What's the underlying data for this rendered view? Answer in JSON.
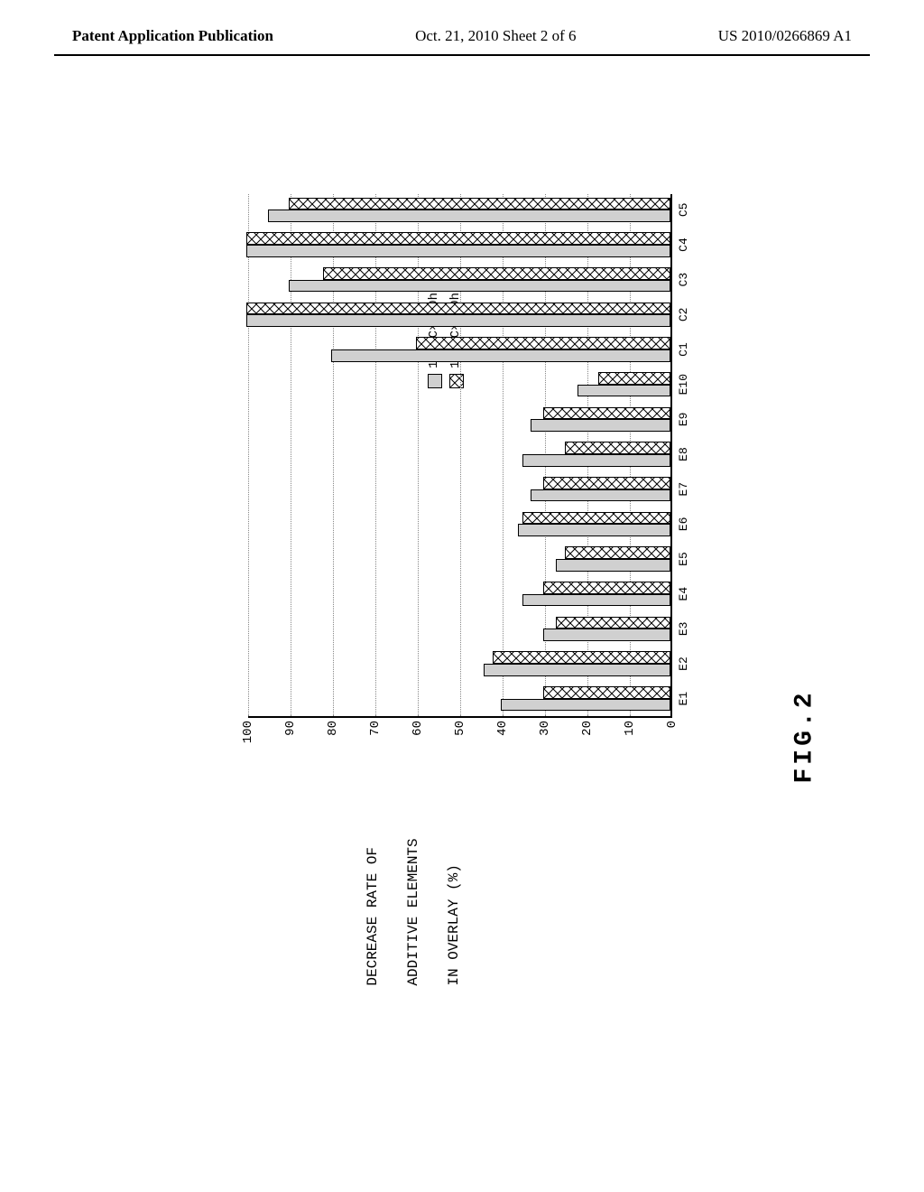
{
  "header": {
    "left": "Patent Application Publication",
    "center": "Oct. 21, 2010  Sheet 2 of 6",
    "right": "US 2010/0266869 A1"
  },
  "figure": {
    "label": "FIG.2",
    "ylabel_line1": "DECREASE RATE OF",
    "ylabel_line2": "ADDITIVE ELEMENTS",
    "ylabel_line3": "IN OVERLAY (%)",
    "legend": {
      "series_300": "150°C×300hr",
      "series_100": "150°C×100hr"
    },
    "chart": {
      "type": "grouped-bar",
      "ymin": 0,
      "ymax": 100,
      "ytick_step": 10,
      "categories": [
        "E1",
        "E2",
        "E3",
        "E4",
        "E5",
        "E6",
        "E7",
        "E8",
        "E9",
        "E10",
        "C1",
        "C2",
        "C3",
        "C4",
        "C5"
      ],
      "series_300_values": [
        40,
        44,
        30,
        35,
        27,
        36,
        33,
        35,
        33,
        22,
        80,
        100,
        90,
        100,
        95
      ],
      "series_100_values": [
        30,
        42,
        27,
        30,
        25,
        35,
        30,
        25,
        30,
        17,
        60,
        100,
        82,
        100,
        90
      ],
      "series_300_fill": "#d0d0d0",
      "series_100_hatch": "diagonal-cross",
      "background_color": "#ffffff",
      "grid_color": "#888888",
      "axis_color": "#000000",
      "bar_border": "#000000",
      "bar_group_width": 0.7
    }
  }
}
